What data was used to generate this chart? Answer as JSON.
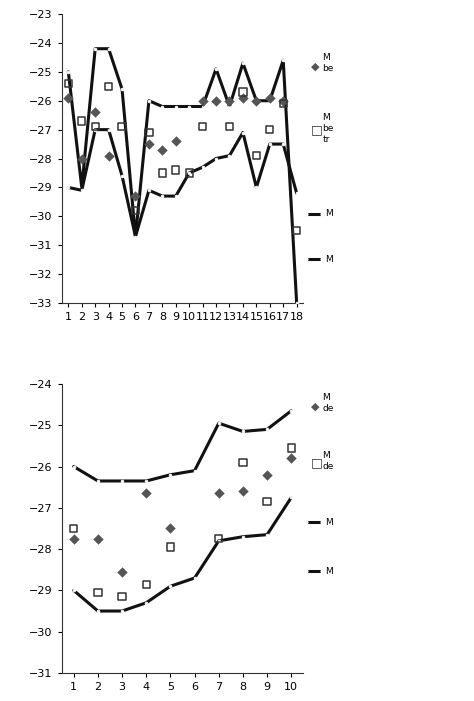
{
  "top": {
    "x": [
      1,
      2,
      3,
      4,
      5,
      6,
      7,
      8,
      9,
      10,
      11,
      12,
      13,
      14,
      15,
      16,
      17,
      18
    ],
    "line1": [
      -25.0,
      -29.0,
      -24.2,
      -24.2,
      -25.6,
      -30.7,
      -26.0,
      -26.2,
      -26.2,
      -26.2,
      -26.2,
      -24.9,
      -26.2,
      -24.7,
      -26.0,
      -26.0,
      -24.6,
      -33.0
    ],
    "line2": [
      -29.0,
      -29.1,
      -27.0,
      -27.0,
      -28.6,
      -30.7,
      -29.1,
      -29.3,
      -29.3,
      -28.5,
      -28.3,
      -28.0,
      -27.9,
      -27.1,
      -29.0,
      -27.5,
      -27.5,
      -29.2
    ],
    "diamond_x": [
      1,
      2,
      3,
      4,
      6,
      7,
      8,
      9,
      11,
      12,
      13,
      14,
      15,
      16,
      17
    ],
    "diamond_y": [
      -25.9,
      -28.0,
      -26.4,
      -27.9,
      -29.3,
      -27.5,
      -27.7,
      -27.4,
      -26.0,
      -26.0,
      -26.0,
      -25.9,
      -26.0,
      -25.9,
      -26.0
    ],
    "square_x": [
      1,
      2,
      3,
      4,
      5,
      6,
      7,
      8,
      9,
      10,
      11,
      13,
      14,
      15,
      16,
      17,
      18
    ],
    "square_y": [
      -25.4,
      -26.7,
      -26.9,
      -25.5,
      -26.9,
      -29.8,
      -27.1,
      -28.5,
      -28.4,
      -28.5,
      -26.9,
      -26.9,
      -25.7,
      -27.9,
      -27.0,
      -26.1,
      -30.5
    ],
    "ylim": [
      -33,
      -23
    ],
    "yticks": [
      -33,
      -32,
      -31,
      -30,
      -29,
      -28,
      -27,
      -26,
      -25,
      -24,
      -23
    ],
    "xlim": [
      0.5,
      18.5
    ],
    "xticks": [
      1,
      2,
      3,
      4,
      5,
      6,
      7,
      8,
      9,
      10,
      11,
      12,
      13,
      14,
      15,
      16,
      17,
      18
    ]
  },
  "bottom": {
    "x": [
      1,
      2,
      3,
      4,
      5,
      6,
      7,
      8,
      9,
      10
    ],
    "line1": [
      -26.0,
      -26.35,
      -26.35,
      -26.35,
      -26.2,
      -26.1,
      -24.95,
      -25.15,
      -25.1,
      -24.65
    ],
    "line2": [
      -29.0,
      -29.5,
      -29.5,
      -29.3,
      -28.9,
      -28.7,
      -27.8,
      -27.7,
      -27.65,
      -26.75
    ],
    "diamond_x": [
      1,
      2,
      3,
      4,
      5,
      7,
      8,
      9,
      10
    ],
    "diamond_y": [
      -27.75,
      -27.75,
      -28.55,
      -26.65,
      -27.5,
      -26.65,
      -26.6,
      -26.2,
      -25.8
    ],
    "square_x": [
      1,
      2,
      3,
      4,
      5,
      7,
      8,
      9,
      10
    ],
    "square_y": [
      -27.5,
      -29.05,
      -29.15,
      -28.85,
      -27.95,
      -27.75,
      -25.9,
      -26.85,
      -25.55
    ],
    "ylim": [
      -31,
      -24
    ],
    "yticks": [
      -31,
      -30,
      -29,
      -28,
      -27,
      -26,
      -25,
      -24
    ],
    "xlim": [
      0.5,
      10.5
    ],
    "xticks": [
      1,
      2,
      3,
      4,
      5,
      6,
      7,
      8,
      9,
      10
    ]
  },
  "line_color": "#111111",
  "diamond_color": "#555555"
}
